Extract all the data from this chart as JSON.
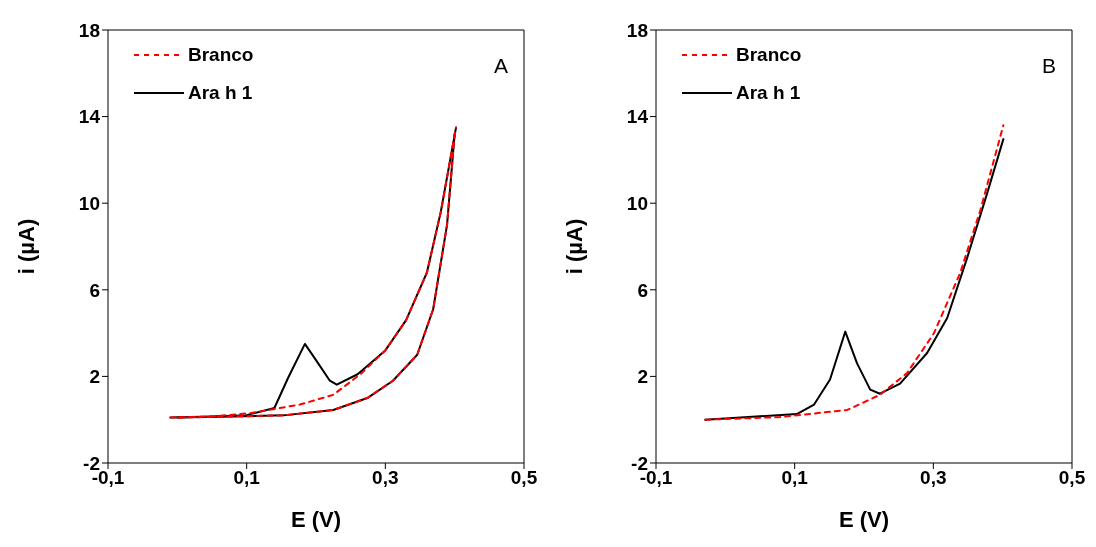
{
  "chart_data": [
    {
      "type": "line",
      "annotations": [
        "A"
      ],
      "xlabel": "E (V)",
      "ylabel": "i (µA)",
      "xlim": [
        -0.1,
        0.5
      ],
      "xticks": [
        {
          "value": -0.1,
          "label": "-0,1"
        },
        {
          "value": 0.1,
          "label": "0,1"
        },
        {
          "value": 0.3,
          "label": "0,3"
        },
        {
          "value": 0.5,
          "label": "0,5"
        }
      ],
      "ylim": [
        -2,
        18
      ],
      "yticks": [
        -2,
        2,
        6,
        10,
        14,
        18
      ],
      "grid": false,
      "legend": "top left",
      "marker": "none",
      "series": [
        {
          "name": "Ara h 1",
          "color": "#000000",
          "line_style": "solid",
          "x": [
            -0.01,
            0.05,
            0.1,
            0.14,
            0.16,
            0.184,
            0.2,
            0.22,
            0.23,
            0.26,
            0.3,
            0.33,
            0.36,
            0.38,
            0.402
          ],
          "values": [
            0.1,
            0.15,
            0.21,
            0.54,
            1.95,
            3.5,
            2.75,
            1.8,
            1.62,
            2.1,
            3.2,
            4.6,
            6.8,
            9.6,
            13.5
          ]
        },
        {
          "color": "#000000",
          "line_style": "solid",
          "x": [
            0.0,
            0.08,
            0.153,
            0.225,
            0.274,
            0.311,
            0.346,
            0.369,
            0.389,
            0.4
          ],
          "values": [
            0.1,
            0.15,
            0.2,
            0.45,
            1.0,
            1.8,
            3.0,
            5.1,
            9.0,
            13.2
          ]
        },
        {
          "name": "Branco",
          "color": "#ff0000",
          "line_style": "dashed",
          "x": [
            -0.01,
            0.05,
            0.105,
            0.177,
            0.225,
            0.264,
            0.3,
            0.33,
            0.36,
            0.38,
            0.402
          ],
          "values": [
            0.1,
            0.15,
            0.3,
            0.7,
            1.15,
            2.1,
            3.2,
            4.6,
            6.8,
            9.6,
            13.5
          ]
        },
        {
          "color": "#ff0000",
          "line_style": "dashed",
          "x": [
            0.0,
            0.08,
            0.153,
            0.225,
            0.274,
            0.311,
            0.346,
            0.369,
            0.389,
            0.4
          ],
          "values": [
            0.1,
            0.15,
            0.2,
            0.45,
            1.0,
            1.8,
            3.0,
            5.1,
            9.0,
            13.2
          ]
        }
      ]
    },
    {
      "type": "line",
      "annotations": [
        "B"
      ],
      "xlabel": "E (V)",
      "ylabel": "i (µA)",
      "xlim": [
        -0.1,
        0.5
      ],
      "xticks": [
        {
          "value": -0.1,
          "label": "-0,1"
        },
        {
          "value": 0.1,
          "label": "0,1"
        },
        {
          "value": 0.3,
          "label": "0,3"
        },
        {
          "value": 0.5,
          "label": "0,5"
        }
      ],
      "ylim": [
        -2,
        18
      ],
      "yticks": [
        -2,
        2,
        6,
        10,
        14,
        18
      ],
      "grid": false,
      "legend": "top left",
      "marker": "none",
      "series": [
        {
          "name": "Ara h 1",
          "color": "#000000",
          "line_style": "solid",
          "x": [
            -0.029,
            0.103,
            0.128,
            0.151,
            0.173,
            0.19,
            0.209,
            0.223,
            0.252,
            0.291,
            0.32,
            0.349,
            0.378,
            0.401
          ],
          "values": [
            0.0,
            0.26,
            0.7,
            1.86,
            4.07,
            2.6,
            1.39,
            1.2,
            1.67,
            3.08,
            4.7,
            7.5,
            10.5,
            12.96
          ]
        },
        {
          "name": "Branco",
          "color": "#ff0000",
          "line_style": "dashed",
          "x": [
            -0.029,
            0.079,
            0.176,
            0.223,
            0.262,
            0.301,
            0.339,
            0.368,
            0.401
          ],
          "values": [
            0.0,
            0.12,
            0.45,
            1.15,
            2.15,
            4.0,
            6.8,
            9.7,
            13.6
          ]
        }
      ]
    }
  ]
}
